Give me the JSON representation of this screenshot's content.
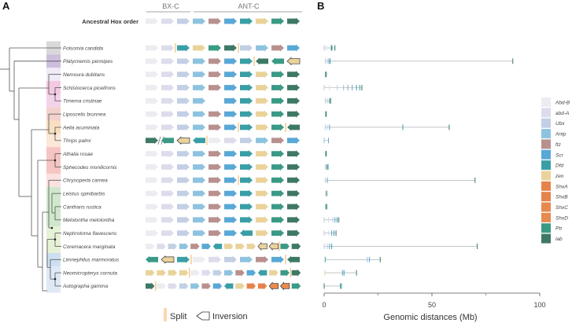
{
  "panels": {
    "a": "A",
    "b": "B"
  },
  "clusters": {
    "bxc": "BX-C",
    "antc": "ANT-C"
  },
  "ancestral": {
    "label": "Ancestral Hox order",
    "genes": [
      "AbdB",
      "abdA",
      "Ubx",
      "Antp",
      "ftz",
      "Scr",
      "Dfd",
      "zen",
      "Pb",
      "lab"
    ]
  },
  "colors": {
    "AbdB": "#ececf1",
    "abdA": "#dcdcec",
    "Ubx": "#c2cfe4",
    "Antp": "#8ec3df",
    "ftz": "#b8918f",
    "Scr": "#59a8d6",
    "Dfd": "#3a9ea6",
    "zen": "#ead39b",
    "ShxA": "#e5834c",
    "ShxB": "#e5834c",
    "ShxC": "#e68a4e",
    "ShxD": "#e68a4e",
    "Pb": "#3a9a85",
    "lab": "#3e7866",
    "split": "#f0b35a",
    "line": "#9aa4a8"
  },
  "species": [
    {
      "name": "Folsomia candida",
      "group": "#d9d9d9",
      "genes": [
        "AbdB",
        "abdA",
        "|",
        "Dfd",
        "zen",
        "Pb",
        "lab",
        "|",
        "Ubx",
        "Antp",
        "ftz",
        "Scr"
      ],
      "ticks": [
        [
          0,
          "AbdB"
        ],
        [
          1,
          "abdA"
        ],
        [
          3.3,
          "Dfd"
        ],
        [
          3.6,
          "Pb"
        ],
        [
          5,
          "lab"
        ]
      ]
    },
    {
      "name": "Platycnemis pennipes",
      "group": "#cdbfdc",
      "genes": [
        "AbdB",
        "abdA",
        "Ubx",
        "Antp",
        "ftz",
        "Scr",
        "Dfd",
        "|",
        "lab<",
        "Pb<",
        "zen<o"
      ],
      "ticks": [
        [
          0.5,
          "AbdB"
        ],
        [
          1.5,
          "Ubx"
        ],
        [
          2.2,
          "Scr"
        ],
        [
          2.8,
          "Dfd"
        ],
        [
          87.5,
          "lab"
        ]
      ]
    },
    {
      "name": "Nemoura dubitans",
      "group": "#f1ebf6",
      "genes": [
        "AbdB",
        "abdA",
        "Ubx",
        "Antp",
        "ftz",
        "Scr",
        "Dfd",
        "zen",
        "Pb",
        "lab"
      ],
      "ticks": [
        [
          0.6,
          "Dfd"
        ],
        [
          1,
          "lab"
        ]
      ]
    },
    {
      "name": "Schistocerca piceifrons",
      "group": "#f3c9e0",
      "genes": [
        "AbdB",
        "abdA",
        "Ubx",
        "Antp",
        "ftz",
        "Scr",
        "Dfd",
        "zen",
        "Pb",
        "lab"
      ],
      "ticks": [
        [
          0,
          "AbdB"
        ],
        [
          2.5,
          "abdA"
        ],
        [
          6,
          "Ubx"
        ],
        [
          9,
          "Antp"
        ],
        [
          11,
          "ftz"
        ],
        [
          13,
          "Scr"
        ],
        [
          15,
          "Dfd"
        ],
        [
          16.5,
          "Pb"
        ],
        [
          17.5,
          "lab"
        ]
      ]
    },
    {
      "name": "Timema cristinae",
      "group": "#f3d3ea",
      "genes": [
        "AbdB",
        "abdA",
        "Ubx",
        "Antp",
        "_",
        "Scr",
        "Dfd",
        "zen",
        "Pb",
        "lab"
      ],
      "ticks": [
        [
          0.5,
          "AbdB"
        ],
        [
          1.5,
          "Ubx"
        ],
        [
          2.5,
          "Dfd"
        ],
        [
          3,
          "lab"
        ]
      ]
    },
    {
      "name": "Liposcelis brunnea",
      "group": "#f2d2cc",
      "genes": [
        "AbdB",
        "abdA",
        "Ubx",
        "Antp",
        "ftz",
        "Scr",
        "Dfd",
        "zen",
        "Pb",
        "lab"
      ],
      "ticks": [
        [
          0.7,
          "Dfd"
        ],
        [
          1,
          "lab"
        ]
      ]
    },
    {
      "name": "Aelia acuminata",
      "group": "#f8dfc0",
      "genes": [
        "AbdB",
        "abdA",
        "Ubx",
        "Antp",
        "ftz",
        "Scr",
        "|",
        "Dfd",
        "zen",
        "Pb",
        "|",
        "lab<"
      ],
      "ticks": [
        [
          0.5,
          "AbdB"
        ],
        [
          1.5,
          "Ubx"
        ],
        [
          2.5,
          "Scr"
        ],
        [
          36.5,
          "Dfd"
        ],
        [
          58,
          "lab"
        ]
      ]
    },
    {
      "name": "Thrips palmi",
      "group": "#fbe8d6",
      "genes": [
        "lab",
        "//",
        "Pb<",
        "zen<o",
        "Dfd<",
        "|",
        "AbdB",
        "abdA",
        "Ubx",
        "Antp",
        "ftz",
        "Scr"
      ],
      "ticks": [
        [
          0,
          "Antp"
        ],
        [
          2,
          "Scr"
        ]
      ]
    },
    {
      "name": "Athalia rosae",
      "group": "#f6c4c2",
      "genes": [
        "AbdB",
        "abdA",
        "Ubx",
        "Antp",
        "ftz",
        "Scr",
        "Dfd",
        "zen",
        "Pb",
        "lab"
      ],
      "ticks": [
        [
          0.7,
          "Dfd"
        ],
        [
          1,
          "lab"
        ]
      ]
    },
    {
      "name": "Sphecodes monilicornis",
      "group": "#f6c4c2",
      "genes": [
        "AbdB",
        "abdA",
        "Ubx",
        "Antp",
        "ftz",
        "Scr",
        "Dfd",
        "zen",
        "Pb",
        "lab"
      ],
      "ticks": [
        [
          0.5,
          "Ubx"
        ],
        [
          1.2,
          "Dfd"
        ],
        [
          1.8,
          "lab"
        ]
      ]
    },
    {
      "name": "Chrysoperla carnea",
      "group": "#fbe1e1",
      "genes": [
        "AbdB",
        "abdA",
        "Ubx",
        "Antp",
        "ftz",
        "Scr",
        "|",
        "Dfd",
        "zen",
        "Pb",
        "lab"
      ],
      "ticks": [
        [
          0.5,
          "AbdB"
        ],
        [
          1.5,
          "Scr"
        ],
        [
          70,
          "lab"
        ]
      ]
    },
    {
      "name": "Leistus spinibarbis",
      "group": "#cfe8cc",
      "genes": [
        "AbdB",
        "abdA",
        "Ubx",
        "Antp",
        "ftz",
        "Scr",
        "Dfd",
        "zen",
        "Pb",
        "lab"
      ],
      "ticks": [
        [
          0.6,
          "Ubx"
        ],
        [
          1.2,
          "lab"
        ]
      ]
    },
    {
      "name": "Cantharis rustica",
      "group": "#cfe8cc",
      "genes": [
        "AbdB",
        "abdA",
        "Ubx",
        "Antp",
        "ftz",
        "Scr",
        "Dfd",
        "zen",
        "Pb",
        "lab"
      ],
      "ticks": [
        [
          0.7,
          "Dfd"
        ],
        [
          1.2,
          "lab"
        ]
      ]
    },
    {
      "name": "Melolontha melolontha",
      "group": "#cfe8cc",
      "genes": [
        "AbdB",
        "abdA",
        "Ubx",
        "Antp",
        "ftz",
        "Scr",
        "Dfd",
        "zen",
        "Pb",
        "lab"
      ],
      "ticks": [
        [
          0,
          "AbdB"
        ],
        [
          2,
          "abdA"
        ],
        [
          4,
          "Ubx"
        ],
        [
          5,
          "Scr"
        ],
        [
          6,
          "Dfd"
        ],
        [
          6.8,
          "lab"
        ]
      ]
    },
    {
      "name": "Nephrotoma flavescens",
      "group": "#e6f2d6",
      "genes": [
        "AbdB",
        "abdA",
        "Ubx",
        "Antp",
        "ftz",
        "Scr",
        "Dfd<",
        "zen",
        "Pb",
        "lab"
      ],
      "ticks": [
        [
          0,
          "AbdB"
        ],
        [
          2,
          "abdA"
        ],
        [
          3.5,
          "Scr"
        ],
        [
          4.5,
          "Dfd"
        ],
        [
          5.5,
          "lab"
        ]
      ]
    },
    {
      "name": "Coremacera marginata",
      "group": "#e6f2d6",
      "genes": [
        "AbdB",
        "abdA",
        "Ubx",
        "Antp",
        "ftz",
        "Scr",
        "Dfd<",
        "zen",
        "zen",
        "zen",
        "zen<o",
        "zen<o",
        "|",
        "Pb",
        "lab"
      ],
      "ticks": [
        [
          0,
          "AbdB"
        ],
        [
          1.5,
          "Ubx"
        ],
        [
          2.5,
          "Scr"
        ],
        [
          3.5,
          "Dfd"
        ],
        [
          71,
          "lab"
        ]
      ]
    },
    {
      "name": "Limnephilus marmoratus",
      "group": "#cddff0",
      "genes": [
        "Pb<",
        "zen<o",
        "Dfd",
        "|",
        "AbdB",
        "abdA",
        "Ubx",
        "Antp",
        "ftz",
        "Scr",
        "|",
        "lab<"
      ],
      "ticks": [
        [
          0.5,
          "Dfd"
        ],
        [
          20,
          "Antp"
        ],
        [
          21,
          "Scr"
        ],
        [
          26,
          "lab"
        ]
      ]
    },
    {
      "name": "Neomicropteryx cornuta",
      "group": "#dfe9f6",
      "genes": [
        "zen",
        "zen",
        "zen",
        "zen",
        "|",
        "AbdB",
        "abdA",
        "Ubx",
        "Antp",
        "ftz",
        "Scr",
        "Dfd<",
        "zen",
        "Pb",
        "|",
        "lab"
      ],
      "ticks": [
        [
          0.3,
          "zen"
        ],
        [
          8.5,
          "Scr"
        ],
        [
          9.2,
          "Dfd"
        ],
        [
          15,
          "lab"
        ]
      ]
    },
    {
      "name": "Autographa gamma",
      "group": "#dfe9f6",
      "genes": [
        "lab",
        "|",
        "AbdB",
        "abdA",
        "Ubx",
        "Antp",
        "ftz",
        "Scr",
        "Dfd<",
        "zen",
        "ShxA",
        "ShxB",
        "ShxC<o",
        "ShxD<o",
        "Pb"
      ],
      "ticks": [
        [
          0,
          "lab"
        ],
        [
          7.5,
          "Dfd"
        ],
        [
          8,
          "Pb"
        ]
      ]
    }
  ],
  "legend": [
    {
      "gene": "AbdB",
      "label": "Abd-B"
    },
    {
      "gene": "abdA",
      "label": "abd-A"
    },
    {
      "gene": "Ubx",
      "label": "Ubx"
    },
    {
      "gene": "Antp",
      "label": "Antp"
    },
    {
      "gene": "ftz",
      "label": "ftz"
    },
    {
      "gene": "Scr",
      "label": "Scr"
    },
    {
      "gene": "Dfd",
      "label": "Dfd"
    },
    {
      "gene": "zen",
      "label": "zen"
    },
    {
      "gene": "ShxA",
      "label": "ShxA"
    },
    {
      "gene": "ShxB",
      "label": "ShxB"
    },
    {
      "gene": "ShxC",
      "label": "ShxC"
    },
    {
      "gene": "ShxD",
      "label": "ShxD"
    },
    {
      "gene": "Pb",
      "label": "Pb"
    },
    {
      "gene": "lab",
      "label": "lab"
    }
  ],
  "key": {
    "split": "Split",
    "inversion": "Inversion"
  },
  "chart": {
    "xlabel": "Genomic distances (Mb)",
    "xlim": [
      0,
      100
    ],
    "ticks": [
      0,
      50,
      100
    ],
    "minor": [
      25,
      75
    ]
  }
}
